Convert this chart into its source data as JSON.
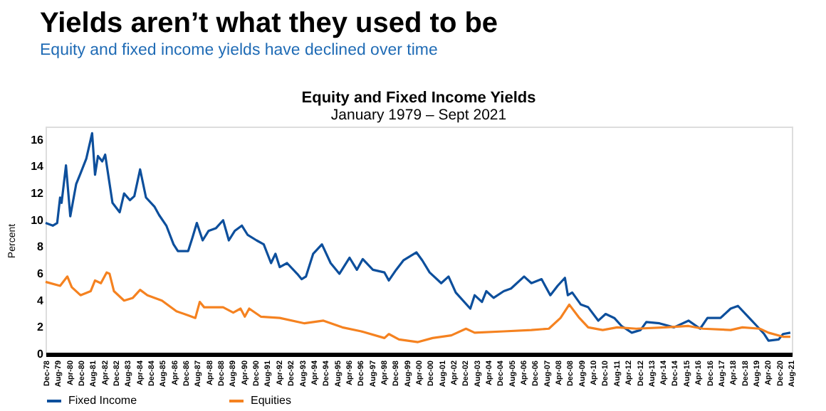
{
  "chart_data": {
    "type": "line",
    "title": "Yields aren’t what they used to be",
    "subtitle": "Equity and fixed income yields have declined over time",
    "annotations": [
      "Equity and Fixed Income Yields",
      "January 1979 – Sept 2021"
    ],
    "ylabel": "Percent",
    "ylim": [
      0,
      17
    ],
    "yticks": [
      0,
      2,
      4,
      6,
      8,
      10,
      12,
      14,
      16
    ],
    "xlim": [
      "1978-12",
      "2021-09"
    ],
    "xticks": [
      {
        "value": "1978-12",
        "label": "Dec-78"
      },
      {
        "value": "1979-08",
        "label": "Aug-79"
      },
      {
        "value": "1980-04",
        "label": "Apr-80"
      },
      {
        "value": "1980-12",
        "label": "Dec-80"
      },
      {
        "value": "1981-08",
        "label": "Aug-81"
      },
      {
        "value": "1982-04",
        "label": "Apr-82"
      },
      {
        "value": "1982-12",
        "label": "Dec-82"
      },
      {
        "value": "1983-08",
        "label": "Aug-83"
      },
      {
        "value": "1984-04",
        "label": "Apr-84"
      },
      {
        "value": "1984-12",
        "label": "Dec-84"
      },
      {
        "value": "1985-08",
        "label": "Aug-85"
      },
      {
        "value": "1986-04",
        "label": "Apr-86"
      },
      {
        "value": "1986-12",
        "label": "Dec-86"
      },
      {
        "value": "1987-08",
        "label": "Aug-87"
      },
      {
        "value": "1988-04",
        "label": "Apr-88"
      },
      {
        "value": "1988-12",
        "label": "Dec-88"
      },
      {
        "value": "1989-08",
        "label": "Aug-89"
      },
      {
        "value": "1990-04",
        "label": "Apr-90"
      },
      {
        "value": "1990-12",
        "label": "Dec-90"
      },
      {
        "value": "1991-08",
        "label": "Aug-91"
      },
      {
        "value": "1992-04",
        "label": "Apr-92"
      },
      {
        "value": "1992-12",
        "label": "Dec-92"
      },
      {
        "value": "1993-08",
        "label": "Aug-93"
      },
      {
        "value": "1994-04",
        "label": "Apr-94"
      },
      {
        "value": "1994-12",
        "label": "Dec-94"
      },
      {
        "value": "1995-08",
        "label": "Aug-95"
      },
      {
        "value": "1996-04",
        "label": "Apr-96"
      },
      {
        "value": "1996-12",
        "label": "Dec-96"
      },
      {
        "value": "1997-08",
        "label": "Aug-97"
      },
      {
        "value": "1998-04",
        "label": "Apr-98"
      },
      {
        "value": "1998-12",
        "label": "Dec-98"
      },
      {
        "value": "1999-08",
        "label": "Aug-99"
      },
      {
        "value": "2000-04",
        "label": "Apr-00"
      },
      {
        "value": "2000-12",
        "label": "Dec-00"
      },
      {
        "value": "2001-08",
        "label": "Aug-01"
      },
      {
        "value": "2002-04",
        "label": "Apr-02"
      },
      {
        "value": "2002-12",
        "label": "Dec-02"
      },
      {
        "value": "2003-08",
        "label": "Aug-03"
      },
      {
        "value": "2004-04",
        "label": "Apr-04"
      },
      {
        "value": "2004-12",
        "label": "Dec-04"
      },
      {
        "value": "2005-08",
        "label": "Aug-05"
      },
      {
        "value": "2006-04",
        "label": "Apr-06"
      },
      {
        "value": "2006-12",
        "label": "Dec-06"
      },
      {
        "value": "2007-08",
        "label": "Aug-07"
      },
      {
        "value": "2008-04",
        "label": "Apr-08"
      },
      {
        "value": "2008-12",
        "label": "Dec-08"
      },
      {
        "value": "2009-08",
        "label": "Aug-09"
      },
      {
        "value": "2010-04",
        "label": "Apr-10"
      },
      {
        "value": "2010-12",
        "label": "Dec-10"
      },
      {
        "value": "2011-08",
        "label": "Aug-11"
      },
      {
        "value": "2012-04",
        "label": "Apr-12"
      },
      {
        "value": "2012-12",
        "label": "Dec-12"
      },
      {
        "value": "2013-08",
        "label": "Aug-13"
      },
      {
        "value": "2014-04",
        "label": "Apr-14"
      },
      {
        "value": "2014-12",
        "label": "Dec-14"
      },
      {
        "value": "2015-08",
        "label": "Aug-15"
      },
      {
        "value": "2016-04",
        "label": "Apr-16"
      },
      {
        "value": "2016-12",
        "label": "Dec-16"
      },
      {
        "value": "2017-08",
        "label": "Aug-17"
      },
      {
        "value": "2018-04",
        "label": "Apr-18"
      },
      {
        "value": "2018-12",
        "label": "Dec-18"
      },
      {
        "value": "2019-08",
        "label": "Aug-19"
      },
      {
        "value": "2020-04",
        "label": "Apr-20"
      },
      {
        "value": "2020-12",
        "label": "Dec-20"
      },
      {
        "value": "2021-08",
        "label": "Aug-21"
      }
    ],
    "grid": false,
    "legend": "bottom",
    "line_style": "solid",
    "marker": "none",
    "series": [
      {
        "name": "Fixed Income",
        "color": "#0d4f9c",
        "x": [
          "1978-12",
          "1979-05",
          "1979-08",
          "1979-10",
          "1979-11",
          "1980-02",
          "1980-05",
          "1980-09",
          "1980-12",
          "1981-04",
          "1981-08",
          "1981-10",
          "1981-12",
          "1982-03",
          "1982-05",
          "1982-10",
          "1983-03",
          "1983-06",
          "1983-10",
          "1984-01",
          "1984-05",
          "1984-09",
          "1985-03",
          "1985-06",
          "1985-11",
          "1986-04",
          "1986-07",
          "1987-02",
          "1987-05",
          "1987-08",
          "1987-12",
          "1988-04",
          "1988-09",
          "1989-02",
          "1989-06",
          "1989-10",
          "1990-03",
          "1990-07",
          "1991-01",
          "1991-06",
          "1991-11",
          "1992-02",
          "1992-05",
          "1992-10",
          "1993-05",
          "1993-08",
          "1993-11",
          "1994-04",
          "1994-10",
          "1995-04",
          "1995-10",
          "1996-05",
          "1996-10",
          "1997-02",
          "1997-09",
          "1998-05",
          "1998-08",
          "1999-01",
          "1999-06",
          "2000-03",
          "2000-07",
          "2000-12",
          "2001-08",
          "2002-01",
          "2002-06",
          "2003-04",
          "2003-07",
          "2003-12",
          "2004-03",
          "2004-08",
          "2005-03",
          "2005-08",
          "2006-05",
          "2006-10",
          "2007-05",
          "2007-11",
          "2008-04",
          "2008-09",
          "2008-11",
          "2009-02",
          "2009-08",
          "2010-01",
          "2010-08",
          "2011-01",
          "2011-07",
          "2011-12",
          "2012-07",
          "2013-01",
          "2013-05",
          "2014-02",
          "2014-12",
          "2015-10",
          "2016-06",
          "2016-11",
          "2017-08",
          "2018-03",
          "2018-08",
          "2019-03",
          "2019-09",
          "2020-02",
          "2020-05",
          "2020-12",
          "2021-03",
          "2021-08"
        ],
        "values": [
          9.8,
          9.6,
          9.8,
          11.7,
          11.3,
          14.1,
          10.3,
          12.7,
          13.5,
          14.6,
          16.5,
          13.4,
          14.8,
          14.4,
          14.9,
          11.3,
          10.6,
          12.0,
          11.5,
          11.8,
          13.8,
          11.7,
          11.0,
          10.4,
          9.6,
          8.2,
          7.7,
          7.7,
          8.7,
          9.8,
          8.5,
          9.2,
          9.4,
          10.0,
          8.5,
          9.2,
          9.6,
          8.9,
          8.5,
          8.2,
          6.8,
          7.5,
          6.5,
          6.8,
          6.0,
          5.6,
          5.8,
          7.5,
          8.2,
          6.8,
          6.0,
          7.2,
          6.3,
          7.1,
          6.3,
          6.1,
          5.5,
          6.3,
          7.0,
          7.6,
          7.0,
          6.1,
          5.3,
          5.8,
          4.6,
          3.4,
          4.4,
          3.9,
          4.7,
          4.2,
          4.7,
          4.9,
          5.8,
          5.3,
          5.6,
          4.4,
          5.1,
          5.7,
          4.4,
          4.6,
          3.7,
          3.5,
          2.5,
          3.0,
          2.7,
          2.1,
          1.6,
          1.8,
          2.4,
          2.3,
          2.0,
          2.5,
          1.9,
          2.7,
          2.7,
          3.4,
          3.6,
          2.8,
          2.1,
          1.5,
          1.0,
          1.1,
          1.5,
          1.6
        ]
      },
      {
        "name": "Equities",
        "color": "#f58220",
        "x": [
          "1978-12",
          "1979-10",
          "1980-03",
          "1980-06",
          "1980-12",
          "1981-07",
          "1981-10",
          "1982-02",
          "1982-06",
          "1982-08",
          "1982-11",
          "1983-06",
          "1983-12",
          "1984-05",
          "1984-10",
          "1985-08",
          "1986-06",
          "1987-02",
          "1987-07",
          "1987-10",
          "1988-01",
          "1989-02",
          "1989-09",
          "1990-02",
          "1990-05",
          "1990-08",
          "1991-04",
          "1992-05",
          "1993-10",
          "1994-11",
          "1995-12",
          "1997-01",
          "1998-05",
          "1998-08",
          "1999-03",
          "2000-04",
          "2001-02",
          "2002-03",
          "2003-01",
          "2003-07",
          "2005-03",
          "2006-10",
          "2007-10",
          "2008-06",
          "2008-12",
          "2009-07",
          "2010-01",
          "2010-11",
          "2011-09",
          "2012-10",
          "2014-06",
          "2015-10",
          "2016-08",
          "2018-03",
          "2018-11",
          "2019-11",
          "2020-05",
          "2021-03",
          "2021-08"
        ],
        "values": [
          5.4,
          5.1,
          5.8,
          5.0,
          4.4,
          4.7,
          5.5,
          5.3,
          6.1,
          6.0,
          4.7,
          4.0,
          4.2,
          4.8,
          4.4,
          4.0,
          3.2,
          2.9,
          2.7,
          3.9,
          3.5,
          3.5,
          3.1,
          3.4,
          2.8,
          3.4,
          2.8,
          2.7,
          2.3,
          2.5,
          2.0,
          1.7,
          1.2,
          1.5,
          1.1,
          0.9,
          1.2,
          1.4,
          1.9,
          1.6,
          1.7,
          1.8,
          1.9,
          2.7,
          3.7,
          2.7,
          2.0,
          1.8,
          2.0,
          1.9,
          2.0,
          2.1,
          1.9,
          1.8,
          2.0,
          1.9,
          1.6,
          1.3,
          1.3
        ]
      }
    ]
  }
}
